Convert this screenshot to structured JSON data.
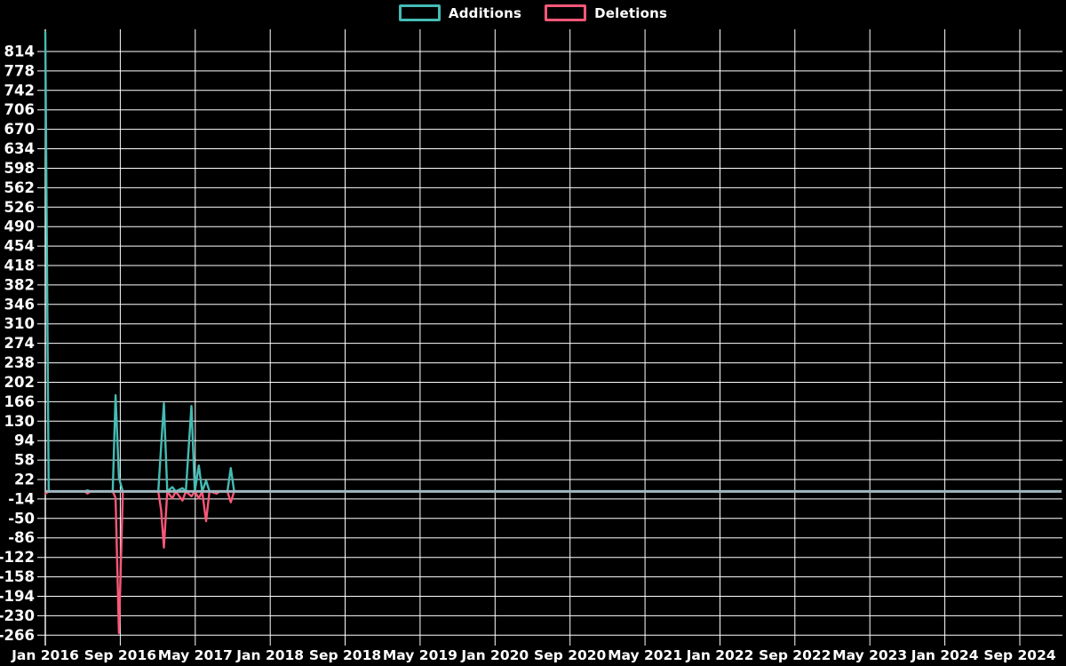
{
  "page": {
    "background_color": "#000000",
    "text_color": "#ffffff",
    "grid_color": "#ffffff"
  },
  "legend": {
    "items": [
      {
        "label": "Additions",
        "color": "#44bcb4"
      },
      {
        "label": "Deletions",
        "color": "#f95778"
      }
    ]
  },
  "chart_data": {
    "type": "line",
    "title": "",
    "xlabel": "",
    "ylabel": "",
    "grid": true,
    "legend_position": "top-center",
    "background": "#000000",
    "zero_baseline_color": "#a0b7bf",
    "x_axis": {
      "tick_labels": [
        "Jan 2016",
        "Sep 2016",
        "May 2017",
        "Jan 2018",
        "Sep 2018",
        "May 2019",
        "Jan 2020",
        "Sep 2020",
        "May 2021",
        "Jan 2022",
        "Sep 2022",
        "May 2023",
        "Jan 2024",
        "Sep 2024"
      ],
      "start_year": 2016.0,
      "end_year": 2024.667,
      "months_per_tick": 8
    },
    "y_axis": {
      "tick_labels": [
        "814",
        "778",
        "742",
        "706",
        "670",
        "634",
        "598",
        "562",
        "526",
        "490",
        "454",
        "418",
        "382",
        "346",
        "310",
        "274",
        "238",
        "202",
        "166",
        "130",
        "94",
        "58",
        "22",
        "-14",
        "-50",
        "-86",
        "-122",
        "-158",
        "-194",
        "-230",
        "-266"
      ],
      "tick_values": [
        814,
        778,
        742,
        706,
        670,
        634,
        598,
        562,
        526,
        490,
        454,
        418,
        382,
        346,
        310,
        274,
        238,
        202,
        166,
        130,
        94,
        58,
        22,
        -14,
        -50,
        -86,
        -122,
        -158,
        -194,
        -230,
        -266
      ],
      "tick_step": 36,
      "ylim": [
        -290,
        855
      ]
    },
    "series": [
      {
        "name": "Additions",
        "color": "#44bcb4",
        "value_key": "a"
      },
      {
        "name": "Deletions",
        "color": "#f95778",
        "value_key": "d"
      }
    ],
    "points": [
      {
        "x": 2016.0,
        "a": 850,
        "d": -4
      },
      {
        "x": 2016.03,
        "a": 0,
        "d": 0
      },
      {
        "x": 2016.35,
        "a": 0,
        "d": 0
      },
      {
        "x": 2016.375,
        "a": 2,
        "d": -4
      },
      {
        "x": 2016.4,
        "a": 0,
        "d": 0
      },
      {
        "x": 2016.6,
        "a": 0,
        "d": 0
      },
      {
        "x": 2016.625,
        "a": 178,
        "d": -12
      },
      {
        "x": 2016.655,
        "a": 25,
        "d": -262
      },
      {
        "x": 2016.69,
        "a": 0,
        "d": 0
      },
      {
        "x": 2017.005,
        "a": 0,
        "d": 0
      },
      {
        "x": 2017.03,
        "a": 84,
        "d": -35
      },
      {
        "x": 2017.055,
        "a": 163,
        "d": -104
      },
      {
        "x": 2017.085,
        "a": 0,
        "d": 0
      },
      {
        "x": 2017.13,
        "a": 8,
        "d": -13
      },
      {
        "x": 2017.16,
        "a": 0,
        "d": 0
      },
      {
        "x": 2017.22,
        "a": 6,
        "d": -17
      },
      {
        "x": 2017.25,
        "a": 0,
        "d": 0
      },
      {
        "x": 2017.3,
        "a": 158,
        "d": -9
      },
      {
        "x": 2017.33,
        "a": 0,
        "d": 0
      },
      {
        "x": 2017.365,
        "a": 48,
        "d": -13
      },
      {
        "x": 2017.395,
        "a": 0,
        "d": 0
      },
      {
        "x": 2017.43,
        "a": 20,
        "d": -55
      },
      {
        "x": 2017.46,
        "a": 0,
        "d": 0
      },
      {
        "x": 2017.525,
        "a": 0,
        "d": -4
      },
      {
        "x": 2017.55,
        "a": 0,
        "d": 0
      },
      {
        "x": 2017.62,
        "a": 0,
        "d": 0
      },
      {
        "x": 2017.65,
        "a": 43,
        "d": -20
      },
      {
        "x": 2017.68,
        "a": 0,
        "d": 0
      },
      {
        "x": 2024.99,
        "a": 0,
        "d": 0
      }
    ]
  }
}
